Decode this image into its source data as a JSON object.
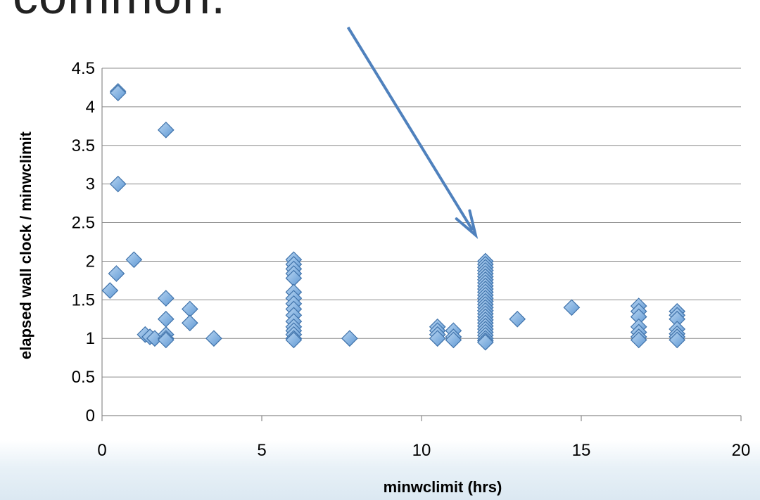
{
  "heading_fragment": "common.",
  "colors": {
    "marker_fill": "#7FB2E5",
    "marker_stroke": "#3F72AA",
    "gridline": "#8C8C8C",
    "arrow": "#4F81BD"
  },
  "chart_data": {
    "type": "scatter",
    "title": "",
    "xlabel": "minwclimit (hrs)",
    "ylabel": "elapsed wall clock / minwclimit",
    "xlim": [
      0,
      20
    ],
    "ylim": [
      0,
      4.5
    ],
    "x_ticks": [
      "0",
      "5",
      "10",
      "15",
      "20"
    ],
    "y_ticks": [
      "0",
      "0.5",
      "1",
      "1.5",
      "2",
      "2.5",
      "3",
      "3.5",
      "4",
      "4.5"
    ],
    "grid": "horizontal",
    "legend": "none",
    "marker": "diamond",
    "points": [
      {
        "x": 0.5,
        "y": 4.2
      },
      {
        "x": 0.5,
        "y": 4.18
      },
      {
        "x": 2,
        "y": 3.7
      },
      {
        "x": 0.5,
        "y": 3.0
      },
      {
        "x": 1,
        "y": 2.02
      },
      {
        "x": 0.45,
        "y": 1.84
      },
      {
        "x": 0.25,
        "y": 1.62
      },
      {
        "x": 2,
        "y": 1.52
      },
      {
        "x": 2.75,
        "y": 1.38
      },
      {
        "x": 2,
        "y": 1.25
      },
      {
        "x": 2.75,
        "y": 1.2
      },
      {
        "x": 1.35,
        "y": 1.05
      },
      {
        "x": 1.5,
        "y": 1.02
      },
      {
        "x": 1.65,
        "y": 1.0
      },
      {
        "x": 2,
        "y": 1.05
      },
      {
        "x": 2,
        "y": 1.0
      },
      {
        "x": 2,
        "y": 0.98
      },
      {
        "x": 3.5,
        "y": 1.0
      },
      {
        "x": 6,
        "y": 2.02
      },
      {
        "x": 6,
        "y": 1.96
      },
      {
        "x": 6,
        "y": 1.9
      },
      {
        "x": 6,
        "y": 1.84
      },
      {
        "x": 6,
        "y": 1.78
      },
      {
        "x": 6,
        "y": 1.6
      },
      {
        "x": 6,
        "y": 1.52
      },
      {
        "x": 6,
        "y": 1.45
      },
      {
        "x": 6,
        "y": 1.38
      },
      {
        "x": 6,
        "y": 1.3
      },
      {
        "x": 6,
        "y": 1.22
      },
      {
        "x": 6,
        "y": 1.15
      },
      {
        "x": 6,
        "y": 1.1
      },
      {
        "x": 6,
        "y": 1.05
      },
      {
        "x": 6,
        "y": 1.0
      },
      {
        "x": 6,
        "y": 0.98
      },
      {
        "x": 7.75,
        "y": 1.0
      },
      {
        "x": 10.5,
        "y": 1.15
      },
      {
        "x": 10.5,
        "y": 1.1
      },
      {
        "x": 10.5,
        "y": 1.05
      },
      {
        "x": 10.5,
        "y": 1.0
      },
      {
        "x": 11,
        "y": 1.1
      },
      {
        "x": 11,
        "y": 1.02
      },
      {
        "x": 11,
        "y": 0.98
      },
      {
        "x": 12,
        "y": 2.0
      },
      {
        "x": 12,
        "y": 1.96
      },
      {
        "x": 12,
        "y": 1.92
      },
      {
        "x": 12,
        "y": 1.88
      },
      {
        "x": 12,
        "y": 1.84
      },
      {
        "x": 12,
        "y": 1.8
      },
      {
        "x": 12,
        "y": 1.76
      },
      {
        "x": 12,
        "y": 1.72
      },
      {
        "x": 12,
        "y": 1.68
      },
      {
        "x": 12,
        "y": 1.64
      },
      {
        "x": 12,
        "y": 1.6
      },
      {
        "x": 12,
        "y": 1.56
      },
      {
        "x": 12,
        "y": 1.52
      },
      {
        "x": 12,
        "y": 1.48
      },
      {
        "x": 12,
        "y": 1.44
      },
      {
        "x": 12,
        "y": 1.4
      },
      {
        "x": 12,
        "y": 1.36
      },
      {
        "x": 12,
        "y": 1.32
      },
      {
        "x": 12,
        "y": 1.28
      },
      {
        "x": 12,
        "y": 1.24
      },
      {
        "x": 12,
        "y": 1.2
      },
      {
        "x": 12,
        "y": 1.16
      },
      {
        "x": 12,
        "y": 1.12
      },
      {
        "x": 12,
        "y": 1.08
      },
      {
        "x": 12,
        "y": 1.04
      },
      {
        "x": 12,
        "y": 1.0
      },
      {
        "x": 12,
        "y": 0.97
      },
      {
        "x": 12,
        "y": 0.95
      },
      {
        "x": 13,
        "y": 1.25
      },
      {
        "x": 14.7,
        "y": 1.4
      },
      {
        "x": 16.8,
        "y": 1.42
      },
      {
        "x": 16.8,
        "y": 1.35
      },
      {
        "x": 16.8,
        "y": 1.28
      },
      {
        "x": 16.8,
        "y": 1.15
      },
      {
        "x": 16.8,
        "y": 1.08
      },
      {
        "x": 16.8,
        "y": 1.02
      },
      {
        "x": 16.8,
        "y": 0.98
      },
      {
        "x": 18,
        "y": 1.35
      },
      {
        "x": 18,
        "y": 1.3
      },
      {
        "x": 18,
        "y": 1.25
      },
      {
        "x": 18,
        "y": 1.12
      },
      {
        "x": 18,
        "y": 1.06
      },
      {
        "x": 18,
        "y": 1.02
      },
      {
        "x": 18,
        "y": 0.98
      }
    ],
    "annotations": [
      {
        "type": "arrow",
        "from": [
          7.7,
          5.03
        ],
        "to": [
          11.6,
          2.4
        ]
      }
    ]
  }
}
